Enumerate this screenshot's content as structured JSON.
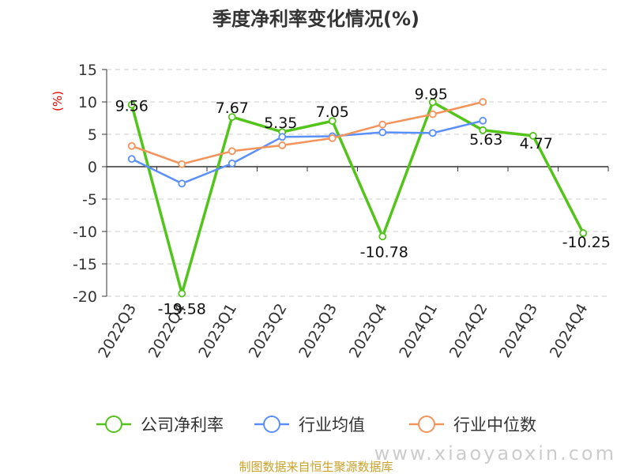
{
  "chart_data": {
    "type": "line",
    "title": "季度净利率变化情况(%)",
    "ylabel": "(%)",
    "ylim": [
      -20,
      15
    ],
    "yticks": [
      15,
      10,
      5,
      0,
      -5,
      -10,
      -15,
      -20
    ],
    "grid": true,
    "legend_position": "bottom",
    "categories": [
      "2022Q3",
      "2022Q4",
      "2023Q1",
      "2023Q2",
      "2023Q3",
      "2023Q4",
      "2024Q1",
      "2024Q2",
      "2024Q3",
      "2024Q4"
    ],
    "series": [
      {
        "name": "公司净利率",
        "color": "#52c41a",
        "values": [
          9.56,
          -19.58,
          7.67,
          5.35,
          7.05,
          -10.78,
          9.95,
          5.63,
          4.77,
          -10.25
        ],
        "labels": [
          "9.56",
          "-19.58",
          "7.67",
          "5.35",
          "7.05",
          "-10.78",
          "9.95",
          "5.63",
          "4.77",
          "-10.25"
        ]
      },
      {
        "name": "行业均值",
        "color": "#5b8ff9",
        "values": [
          1.2,
          -2.6,
          0.5,
          4.6,
          4.7,
          5.3,
          5.2,
          7.1,
          null,
          null
        ]
      },
      {
        "name": "行业中位数",
        "color": "#f4935a",
        "values": [
          3.2,
          0.4,
          2.4,
          3.3,
          4.4,
          6.5,
          8.1,
          10.0,
          null,
          null
        ]
      }
    ]
  },
  "source": "制图数据来自恒生聚源数据库",
  "watermark": "www.xiaoyaoxin.com"
}
